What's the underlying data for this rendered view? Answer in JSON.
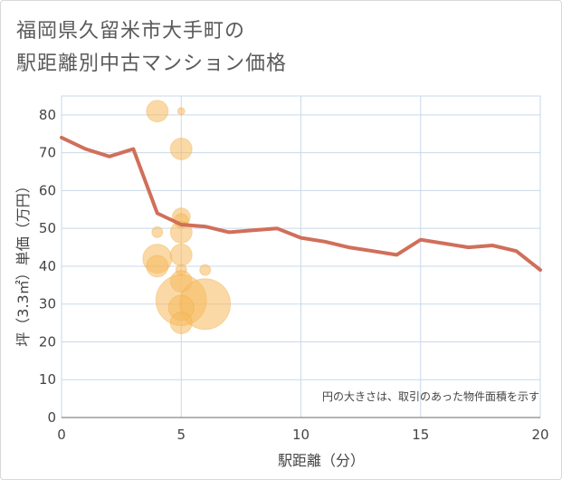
{
  "header": {
    "title_line1": "福岡県久留米市大手町の",
    "title_line2": "駅距離別中古マンション価格"
  },
  "chart_data": {
    "type": "scatter",
    "title": "福岡県久留米市大手町の駅距離別中古マンション価格",
    "xlabel": "駅距離（分）",
    "ylabel": "坪（3.3㎡）単価（万円）",
    "xlim": [
      0,
      20
    ],
    "ylim": [
      0,
      85
    ],
    "x_ticks": [
      0,
      5,
      10,
      15,
      20
    ],
    "y_ticks": [
      0,
      10,
      20,
      30,
      40,
      50,
      60,
      70,
      80
    ],
    "grid": true,
    "note": "円の大きさは、取引のあった物件面積を示す",
    "colors": {
      "bubble": "#f5b95f",
      "line": "#d06f5a",
      "grid": "#c9d9e8"
    },
    "bubbles": [
      {
        "x": 4,
        "y": 81,
        "size": 3
      },
      {
        "x": 5,
        "y": 81,
        "size": 1
      },
      {
        "x": 5,
        "y": 71,
        "size": 3
      },
      {
        "x": 5,
        "y": 53,
        "size": 2.5
      },
      {
        "x": 5,
        "y": 52,
        "size": 2
      },
      {
        "x": 5,
        "y": 49,
        "size": 3
      },
      {
        "x": 4,
        "y": 49,
        "size": 1.5
      },
      {
        "x": 4,
        "y": 42,
        "size": 4
      },
      {
        "x": 4,
        "y": 40,
        "size": 3
      },
      {
        "x": 5,
        "y": 43,
        "size": 3
      },
      {
        "x": 5,
        "y": 39,
        "size": 1.5
      },
      {
        "x": 6,
        "y": 39,
        "size": 1.5
      },
      {
        "x": 5,
        "y": 36,
        "size": 3
      },
      {
        "x": 5,
        "y": 31,
        "size": 7
      },
      {
        "x": 6,
        "y": 30,
        "size": 7
      },
      {
        "x": 5,
        "y": 29,
        "size": 3.5
      },
      {
        "x": 5,
        "y": 25,
        "size": 3
      }
    ],
    "series": [
      {
        "x": [
          0,
          1,
          2,
          3,
          4,
          5,
          6,
          7,
          8,
          9,
          10,
          11,
          12,
          13,
          14,
          15,
          16,
          17,
          18,
          19,
          20
        ],
        "values": [
          74,
          71,
          69,
          71,
          54,
          51,
          50.5,
          49,
          49.5,
          50,
          47.5,
          46.5,
          45,
          44,
          43,
          47,
          46,
          45,
          45.5,
          44,
          39
        ]
      }
    ]
  }
}
